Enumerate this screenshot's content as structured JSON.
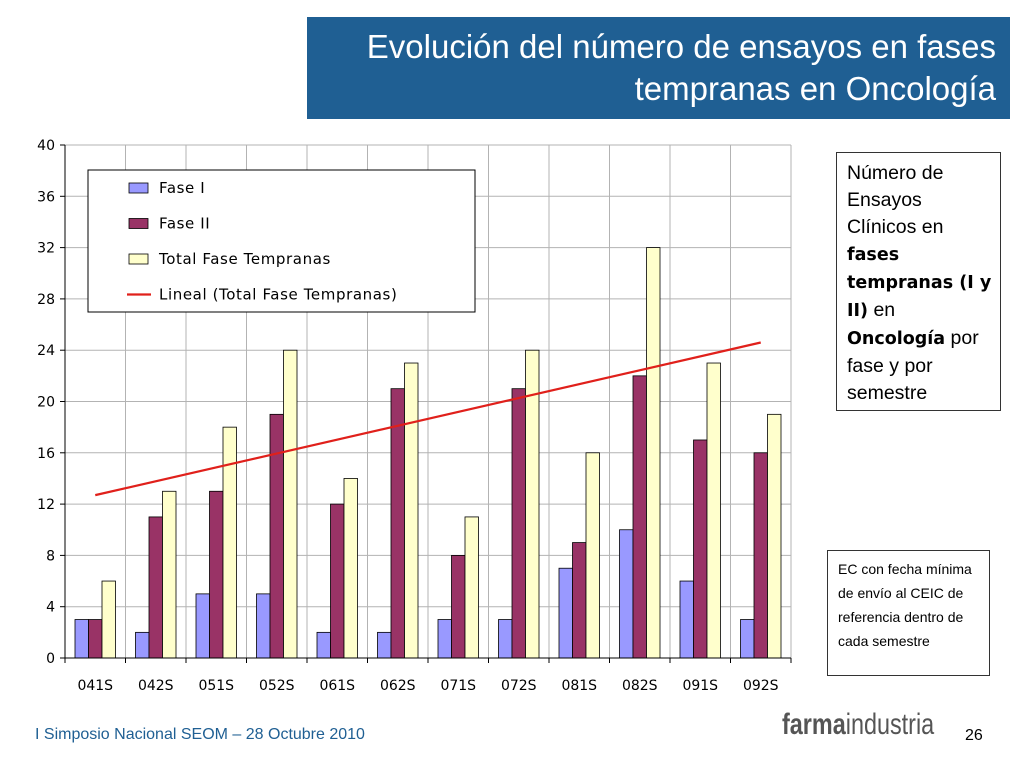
{
  "slide": {
    "title_line1": "Evolución del número de ensayos en fases",
    "title_line2": "tempranas en Oncología",
    "footer_left": "I Simposio Nacional SEOM – 28 Octubre 2010",
    "page_number": "26",
    "brand_bold": "farma",
    "brand_light": "industria"
  },
  "info_box": {
    "t1": "Número de Ensayos Clínicos en ",
    "t2": "fases tempranas (I y II)",
    "t3": " en ",
    "t4": "Oncología",
    "t5": " por fase y por semestre"
  },
  "note_box": {
    "text": "EC con fecha mínima de envío al CEIC de referencia dentro de cada semestre"
  },
  "colors": {
    "title_bg": "#1f5f93",
    "fase1": "#9999ff",
    "fase2": "#993366",
    "total": "#ffffcc",
    "trend": "#e0201b"
  },
  "chart_data": {
    "type": "bar",
    "categories": [
      "041S",
      "042S",
      "051S",
      "052S",
      "061S",
      "062S",
      "071S",
      "072S",
      "081S",
      "082S",
      "091S",
      "092S"
    ],
    "series": [
      {
        "name": "Fase I",
        "values": [
          3,
          2,
          5,
          5,
          2,
          2,
          3,
          3,
          7,
          10,
          6,
          3
        ]
      },
      {
        "name": "Fase II",
        "values": [
          3,
          11,
          13,
          19,
          12,
          21,
          8,
          21,
          9,
          22,
          17,
          16
        ]
      },
      {
        "name": "Total Fase Tempranas",
        "values": [
          6,
          13,
          18,
          24,
          14,
          23,
          11,
          24,
          16,
          32,
          23,
          19
        ]
      }
    ],
    "trendline": {
      "name": "Lineal (Total Fase Tempranas)",
      "start": 12.7,
      "end": 24.6
    },
    "ylim": [
      0,
      40
    ],
    "yticks": [
      0,
      4,
      8,
      12,
      16,
      20,
      24,
      28,
      32,
      36,
      40
    ],
    "ytick_labels": [
      "0",
      "4",
      "8",
      "12",
      "16",
      "20",
      "24",
      "28",
      "32",
      "36",
      "40"
    ],
    "grid": true,
    "legend_position": "top-left"
  }
}
